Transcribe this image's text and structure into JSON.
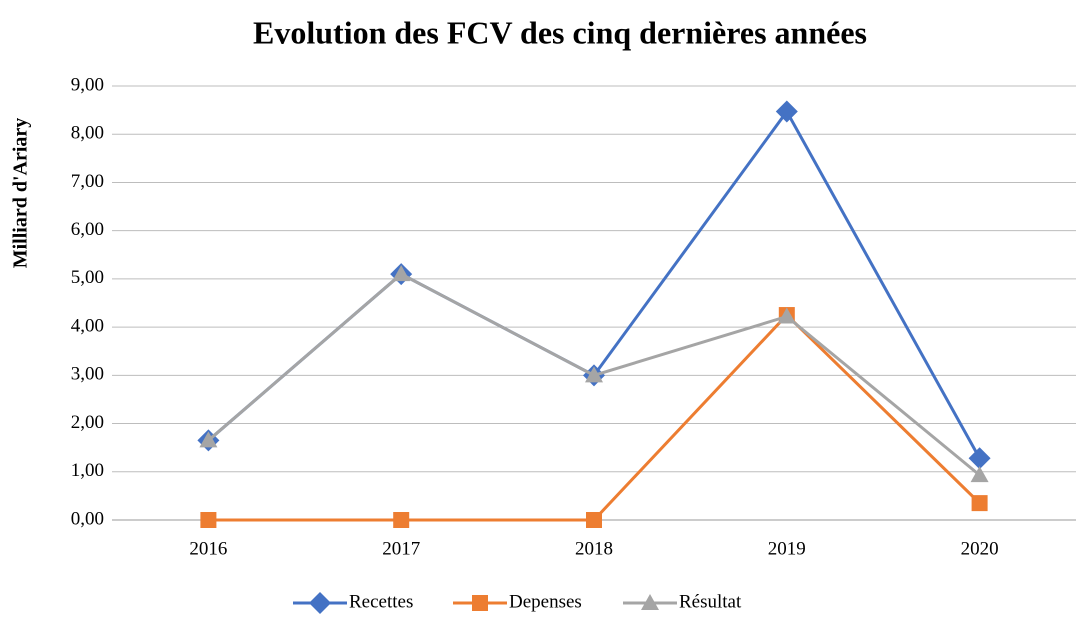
{
  "chart_data": {
    "type": "line",
    "title": "Evolution des FCV des cinq dernières années",
    "y_label": "Milliard d'Ariary",
    "categories": [
      "2016",
      "2017",
      "2018",
      "2019",
      "2020"
    ],
    "series": [
      {
        "name": "Recettes",
        "color": "#4472c4",
        "marker": "diamond",
        "values": [
          1.65,
          5.1,
          3.0,
          8.47,
          1.28
        ]
      },
      {
        "name": "Depenses",
        "color": "#ed7d31",
        "marker": "square",
        "values": [
          0,
          0,
          0,
          4.25,
          0.35
        ]
      },
      {
        "name": "Résultat",
        "color": "#a5a5a5",
        "marker": "triangle",
        "values": [
          1.65,
          5.1,
          3.0,
          4.22,
          0.93
        ]
      }
    ],
    "ylim": [
      0,
      9
    ],
    "yticks": [
      {
        "value": 0,
        "label": "0,00"
      },
      {
        "value": 1,
        "label": "1,00"
      },
      {
        "value": 2,
        "label": "2,00"
      },
      {
        "value": 3,
        "label": "3,00"
      },
      {
        "value": 4,
        "label": "4,00"
      },
      {
        "value": 5,
        "label": "5,00"
      },
      {
        "value": 6,
        "label": "6,00"
      },
      {
        "value": 7,
        "label": "7,00"
      },
      {
        "value": 8,
        "label": "8,00"
      },
      {
        "value": 9,
        "label": "9,00"
      }
    ],
    "grid": true,
    "legend": "bottom"
  }
}
